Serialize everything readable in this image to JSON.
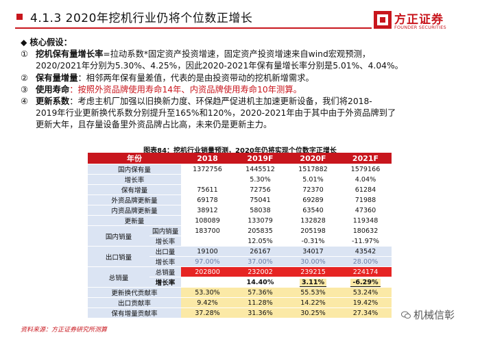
{
  "header": {
    "title": "4.1.3 2020年挖机行业仍将个位数正增长",
    "logo_cn": "方正证券",
    "logo_en": "FOUNDER SECURITIES",
    "accent_color": "#c8161d"
  },
  "assumptions": {
    "heading": "核心假设：",
    "items": [
      {
        "num": "①",
        "term": "挖机保有量增长率",
        "line1": "=拉动系数*固定资产投资增速，固定资产投资增速来自wind宏观预测，",
        "line2": "2020/2021年分别为5.30%、4.25%，因此2020-2021年保有量增长率分别是5.01%、4.04%。"
      },
      {
        "num": "②",
        "term": "保有量增量",
        "line1": "：相邻两年保有量差值，代表的是由投资带动的挖机新增需求。"
      },
      {
        "num": "③",
        "term": "使用寿命",
        "line1": "：按照外资品牌使用寿命14年、内资品牌使用寿命10年测算。"
      },
      {
        "num": "④",
        "term": "更新系数",
        "line1": "：考虑主机厂加强以旧换新力度、环保趋严促进机主加速更新设备，我们将2018-",
        "line2": "2019年行业更新换代系数分别提升至165%和120%，2020-2021年由于其中由于外资品牌到了",
        "line3": "更新大年，且存量设备里外资品牌占比高，未来仍是更新主力。"
      }
    ]
  },
  "table": {
    "title": "图表84：挖机行业销量预测，2020年仍将实现个位数字正增长",
    "headers": [
      "年份",
      "2018",
      "2019F",
      "2020F",
      "2021F"
    ],
    "rows": {
      "domestic_stock": {
        "label": "国内保有量",
        "values": [
          "1372756",
          "1445512",
          "1517882",
          "1579166"
        ]
      },
      "growth": {
        "label": "增长率",
        "values": [
          "",
          "5.30%",
          "5.01%",
          "4.04%"
        ]
      },
      "stock_increment": {
        "label": "保有增量",
        "values": [
          "75611",
          "72756",
          "72370",
          "61284"
        ]
      },
      "foreign_update": {
        "label": "外资品牌更新量",
        "values": [
          "69178",
          "75041",
          "69289",
          "71988"
        ]
      },
      "domestic_brand_update": {
        "label": "内资品牌更新量",
        "values": [
          "38912",
          "58038",
          "63540",
          "47360"
        ]
      },
      "update_total": {
        "label": "更新量",
        "values": [
          "108089",
          "133079",
          "132828",
          "119348"
        ]
      },
      "domestic_sales": {
        "group": "国内销量",
        "sub1": "国内销量",
        "sub2": "增长率",
        "values1": [
          "183700",
          "205835",
          "205198",
          "180632"
        ],
        "values2": [
          "",
          "12.05%",
          "-0.31%",
          "-11.97%"
        ]
      },
      "export_sales": {
        "group": "出口销量",
        "sub1": "出口量",
        "sub2": "增长率",
        "values1": [
          "19100",
          "26167",
          "34017",
          "43542"
        ],
        "values2": [
          "97.00%",
          "37.00%",
          "30.00%",
          "28.00%"
        ]
      },
      "total_sales": {
        "group": "总销量",
        "sub1": "总销量",
        "sub2": "增长率",
        "values1": [
          "202800",
          "232002",
          "239215",
          "224174"
        ],
        "values2": [
          "",
          "14.40%",
          "3.11%",
          "-6.29%"
        ]
      },
      "update_contrib": {
        "label": "更新换代贡献率",
        "values": [
          "53.30%",
          "57.36%",
          "55.53%",
          "53.24%"
        ]
      },
      "export_contrib": {
        "label": "出口贡献率",
        "values": [
          "9.42%",
          "11.28%",
          "14.22%",
          "19.42%"
        ]
      },
      "stock_contrib": {
        "label": "保有增量贡献率",
        "values": [
          "37.28%",
          "31.36%",
          "30.25%",
          "27.34%"
        ]
      }
    }
  },
  "source": "资料来源：方正证券研究所测算",
  "watermark": "机械信彰"
}
